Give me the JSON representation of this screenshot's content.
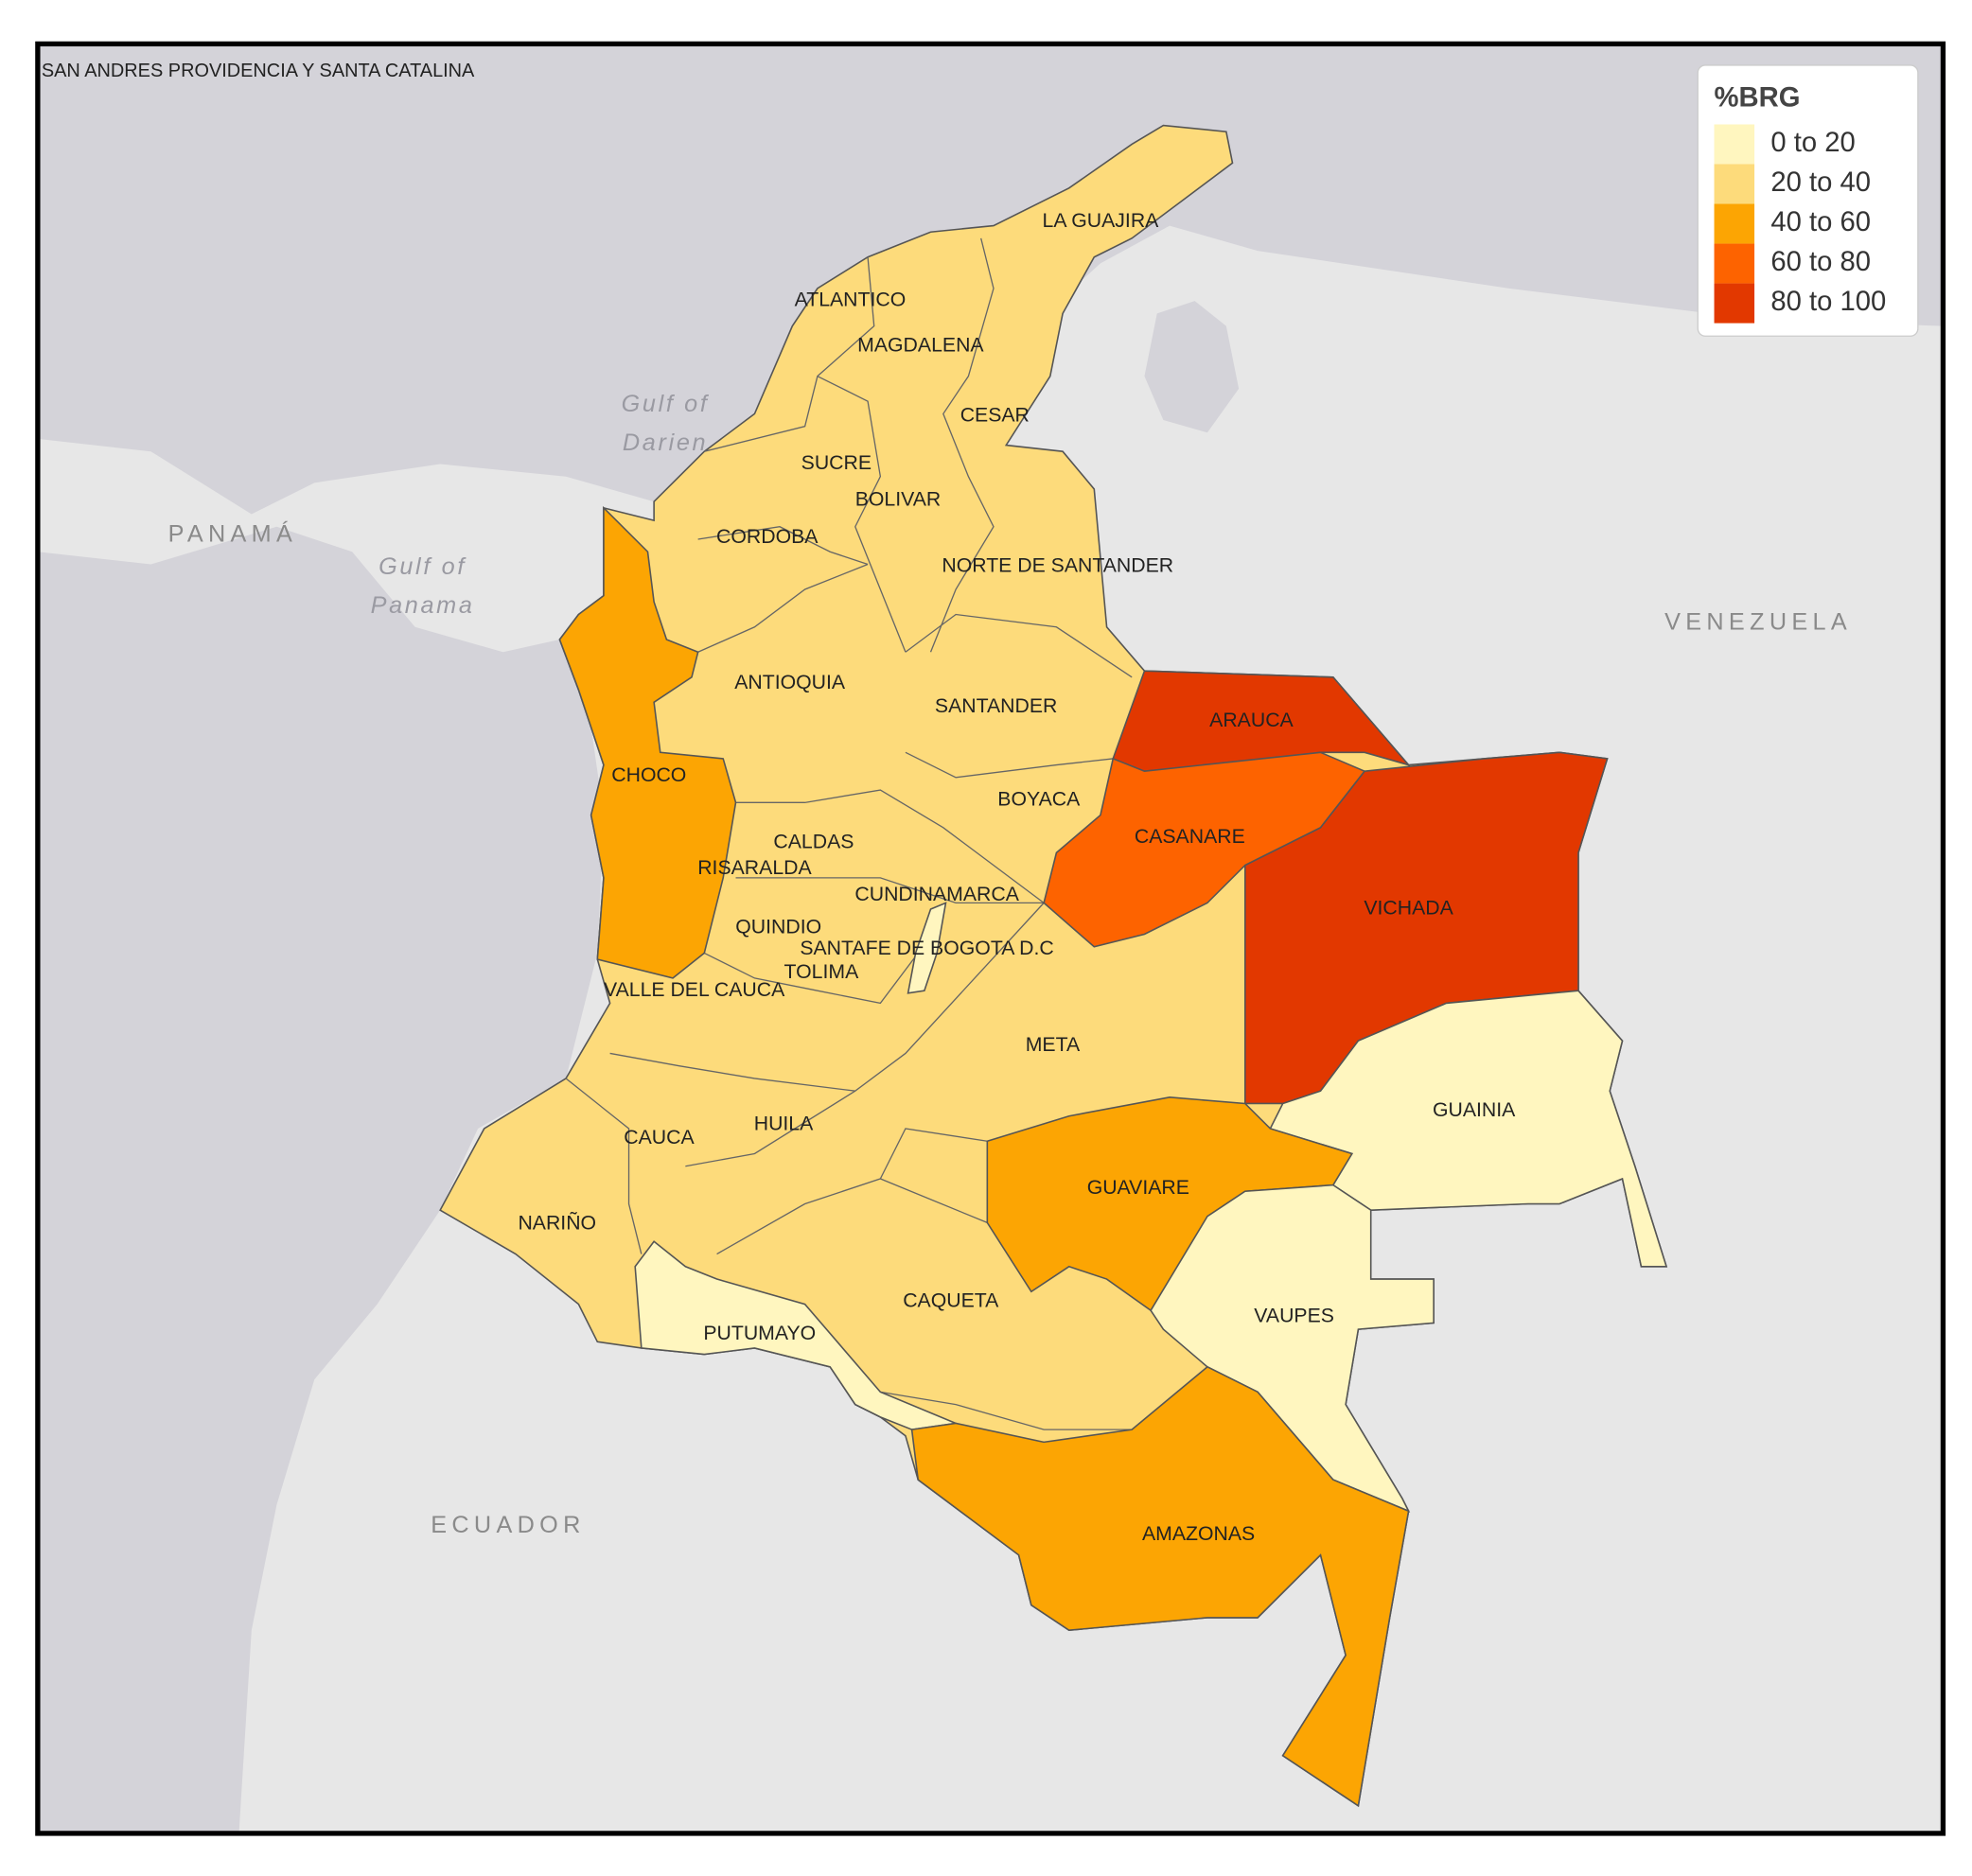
{
  "inset_label": "SAN ANDRES PROVIDENCIA Y SANTA CATALINA",
  "legend": {
    "title": "%BRG",
    "entries": [
      {
        "label": "0 to 20",
        "color": "#fff6bf"
      },
      {
        "label": "20 to 40",
        "color": "#fddb7b"
      },
      {
        "label": "40 to 60",
        "color": "#fca503"
      },
      {
        "label": "60 to 80",
        "color": "#fd6300"
      },
      {
        "label": "80 to 100",
        "color": "#e23800"
      }
    ]
  },
  "departments": [
    {
      "name": "LA GUAJIRA",
      "color": "#fddb7b"
    },
    {
      "name": "ATLANTICO",
      "color": "#fddb7b"
    },
    {
      "name": "MAGDALENA",
      "color": "#fddb7b"
    },
    {
      "name": "CESAR",
      "color": "#fddb7b"
    },
    {
      "name": "SUCRE",
      "color": "#fddb7b"
    },
    {
      "name": "BOLIVAR",
      "color": "#fddb7b"
    },
    {
      "name": "CORDOBA",
      "color": "#fddb7b"
    },
    {
      "name": "NORTE DE SANTANDER",
      "color": "#fddb7b"
    },
    {
      "name": "ANTIOQUIA",
      "color": "#fddb7b"
    },
    {
      "name": "SANTANDER",
      "color": "#fddb7b"
    },
    {
      "name": "ARAUCA",
      "color": "#e23800"
    },
    {
      "name": "CHOCO",
      "color": "#fca503"
    },
    {
      "name": "BOYACA",
      "color": "#fddb7b"
    },
    {
      "name": "CASANARE",
      "color": "#fd6300"
    },
    {
      "name": "CALDAS",
      "color": "#fddb7b"
    },
    {
      "name": "RISARALDA",
      "color": "#fddb7b"
    },
    {
      "name": "CUNDINAMARCA",
      "color": "#fddb7b"
    },
    {
      "name": "VICHADA",
      "color": "#e23800"
    },
    {
      "name": "QUINDIO",
      "color": "#fddb7b"
    },
    {
      "name": "SANTAFE DE BOGOTA D.C",
      "color": "#fff6bf"
    },
    {
      "name": "TOLIMA",
      "color": "#fddb7b"
    },
    {
      "name": "VALLE DEL CAUCA",
      "color": "#fddb7b"
    },
    {
      "name": "META",
      "color": "#fddb7b"
    },
    {
      "name": "GUAINIA",
      "color": "#fff6bf"
    },
    {
      "name": "HUILA",
      "color": "#fddb7b"
    },
    {
      "name": "CAUCA",
      "color": "#fddb7b"
    },
    {
      "name": "GUAVIARE",
      "color": "#fca503"
    },
    {
      "name": "NARIÑO",
      "color": "#fddb7b"
    },
    {
      "name": "CAQUETA",
      "color": "#fddb7b"
    },
    {
      "name": "VAUPES",
      "color": "#fff6bf"
    },
    {
      "name": "PUTUMAYO",
      "color": "#fff6bf"
    },
    {
      "name": "AMAZONAS",
      "color": "#fca503"
    }
  ],
  "countries": [
    "PANAMÁ",
    "VENEZUELA",
    "ECUADOR"
  ],
  "waters": [
    [
      "Gulf of",
      "Darien"
    ],
    [
      "Gulf of",
      "Panama"
    ]
  ]
}
